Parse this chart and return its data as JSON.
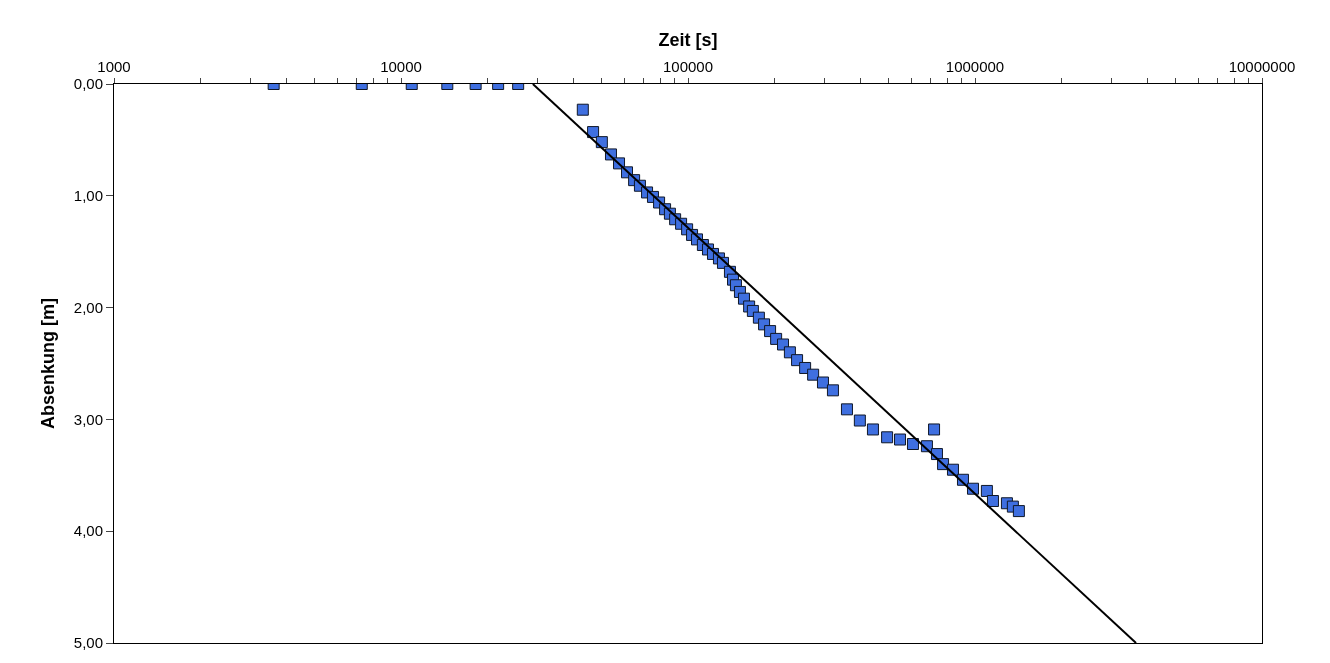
{
  "chart_data": {
    "type": "scatter",
    "xlabel": "Zeit [s]",
    "ylabel": "Absenkung [m]",
    "log": "x",
    "xlim": [
      1000,
      10000000
    ],
    "ylim": [
      5,
      0
    ],
    "xticks": [
      1000,
      {
        "value": 2000,
        "label": null
      },
      {
        "value": 3000,
        "label": null
      },
      {
        "value": 4000,
        "label": null
      },
      {
        "value": 5000,
        "label": null
      },
      {
        "value": 6000,
        "label": null
      },
      {
        "value": 7000,
        "label": null
      },
      {
        "value": 8000,
        "label": null
      },
      {
        "value": 9000,
        "label": null
      },
      10000,
      {
        "value": 20000,
        "label": null
      },
      {
        "value": 30000,
        "label": null
      },
      {
        "value": 40000,
        "label": null
      },
      {
        "value": 50000,
        "label": null
      },
      {
        "value": 60000,
        "label": null
      },
      {
        "value": 70000,
        "label": null
      },
      {
        "value": 80000,
        "label": null
      },
      {
        "value": 90000,
        "label": null
      },
      100000,
      {
        "value": 200000,
        "label": null
      },
      {
        "value": 300000,
        "label": null
      },
      {
        "value": 400000,
        "label": null
      },
      {
        "value": 500000,
        "label": null
      },
      {
        "value": 600000,
        "label": null
      },
      {
        "value": 700000,
        "label": null
      },
      {
        "value": 800000,
        "label": null
      },
      {
        "value": 900000,
        "label": null
      },
      1000000,
      {
        "value": 2000000,
        "label": null
      },
      {
        "value": 3000000,
        "label": null
      },
      {
        "value": 4000000,
        "label": null
      },
      {
        "value": 5000000,
        "label": null
      },
      {
        "value": 6000000,
        "label": null
      },
      {
        "value": 7000000,
        "label": null
      },
      {
        "value": 8000000,
        "label": null
      },
      {
        "value": 9000000,
        "label": null
      },
      10000000
    ],
    "yticks": [
      {
        "value": 0,
        "label": "0,00"
      },
      {
        "value": 1,
        "label": "1,00"
      },
      {
        "value": 2,
        "label": "2,00"
      },
      {
        "value": 3,
        "label": "3,00"
      },
      {
        "value": 4,
        "label": "4,00"
      },
      {
        "value": 5,
        "label": "5,00"
      }
    ],
    "series": [
      {
        "marker": "square",
        "color": "#3f6fe0",
        "x": [
          3600,
          7300,
          10900,
          14500,
          18200,
          21800,
          25600,
          43000,
          46700,
          50100,
          53900,
          57500,
          61300,
          64900,
          68000,
          72000,
          75500,
          79300,
          83200,
          86500,
          90200,
          94600,
          99300,
          103300,
          107500,
          112700,
          117400,
          122200,
          128200,
          132400,
          140000,
          143500,
          146900,
          151700,
          156700,
          163300,
          168300,
          176600,
          184100,
          193200,
          202800,
          214300,
          226500,
          239900,
          255900,
          272900,
          295300,
          319900,
          358000,
          397000,
          441000,
          494000,
          548000,
          608000,
          680000,
          720000,
          737000,
          774000,
          838000,
          908000,
          984000,
          1100000,
          1155000,
          1292000,
          1355000,
          1422000
        ],
        "values": [
          0,
          0,
          0,
          0,
          0,
          0,
          0,
          0.23,
          0.43,
          0.52,
          0.63,
          0.71,
          0.79,
          0.86,
          0.91,
          0.97,
          1.01,
          1.06,
          1.12,
          1.16,
          1.21,
          1.25,
          1.3,
          1.35,
          1.39,
          1.44,
          1.48,
          1.52,
          1.56,
          1.6,
          1.68,
          1.75,
          1.8,
          1.86,
          1.92,
          1.99,
          2.03,
          2.09,
          2.15,
          2.21,
          2.28,
          2.33,
          2.4,
          2.47,
          2.54,
          2.6,
          2.67,
          2.74,
          2.91,
          3.01,
          3.09,
          3.16,
          3.18,
          3.22,
          3.24,
          3.09,
          3.31,
          3.4,
          3.45,
          3.54,
          3.62,
          3.64,
          3.73,
          3.75,
          3.78,
          3.82
        ]
      },
      {
        "type": "line",
        "color": "#000000",
        "line_style": "solid",
        "marker": "none",
        "x": [
          28800,
          3640000
        ],
        "values": [
          0,
          5
        ]
      }
    ]
  }
}
